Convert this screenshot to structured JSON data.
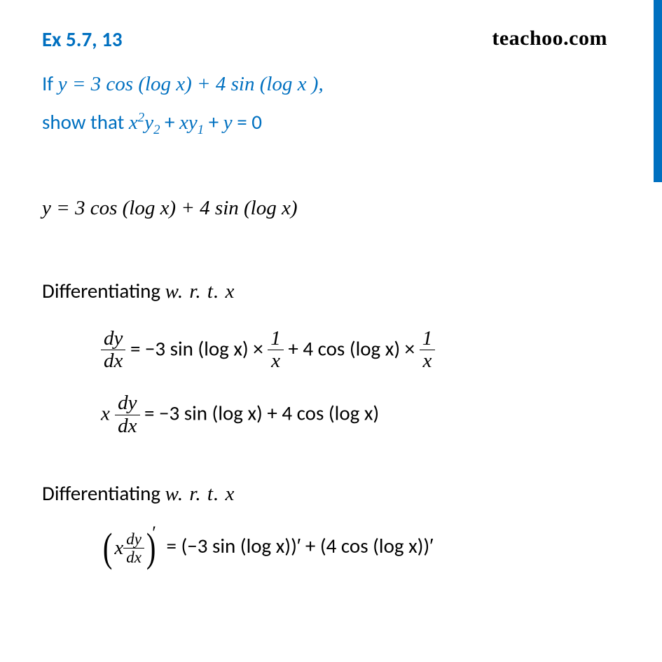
{
  "header": {
    "exercise": "Ex 5.7, 13",
    "brand": "teachoo.com"
  },
  "problem": {
    "line1_prefix": "If  ",
    "line1_math": "y = 3  cos  (log x) + 4  sin  (log x ),",
    "line2_prefix": "show that  ",
    "line2_math_a": "x",
    "line2_math_sup": "2",
    "line2_math_b": "y",
    "line2_sub1": "2",
    "line2_plus1": " + ",
    "line2_math_c": "xy",
    "line2_sub2": "1",
    "line2_plus2": " + ",
    "line2_math_d": "y",
    "line2_eq": " = 0"
  },
  "solution": {
    "given": "y = 3 cos  (log x) + 4  sin  (log x)",
    "diff_label_prefix": "Differentiating  ",
    "diff_label_wrt": "w. r. t. x",
    "step1": {
      "lhs_num": "dy",
      "lhs_den": "dx",
      "eq": " = −3 sin (log x) × ",
      "frac1_num": "1",
      "frac1_den": "x",
      "mid": " + 4 cos (log x) × ",
      "frac2_num": "1",
      "frac2_den": "x"
    },
    "step2": {
      "x": "x ",
      "lhs_num": "dy",
      "lhs_den": "dx",
      "rhs": " = −3 sin (log x) + 4 cos (log x)"
    },
    "step3": {
      "x": "x ",
      "lhs_num": "dy",
      "lhs_den": "dx",
      "rhs": " = (−3 sin (log x))′ + (4 cos (log x))′"
    }
  },
  "colors": {
    "accent": "#0070c0",
    "text": "#000000",
    "bg": "#ffffff"
  }
}
